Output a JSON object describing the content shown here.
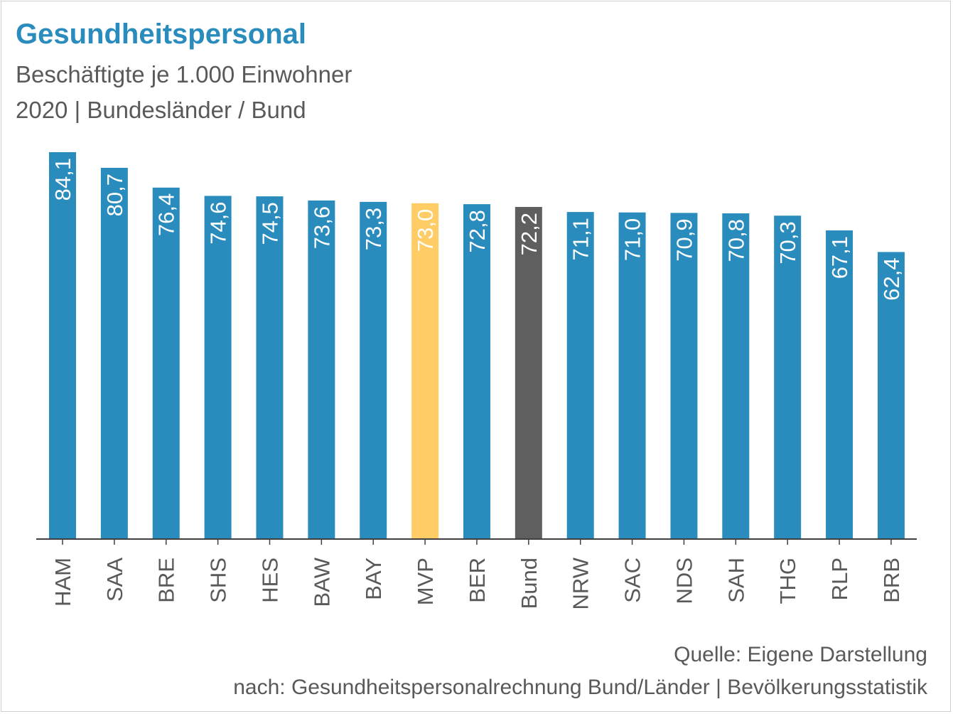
{
  "header": {
    "title": "Gesundheitspersonal",
    "subtitle_line1": "Beschäftigte je 1.000 Einwohner",
    "subtitle_line2": "2020 | Bundesländer / Bund"
  },
  "footer": {
    "source_line1": "Quelle: Eigene Darstellung",
    "source_line2": "nach: Gesundheitspersonalrechnung Bund/Länder | Bevölkerungsstatistik"
  },
  "colors": {
    "default_bar": "#2a8bbd",
    "highlight_bar": "#ffcc66",
    "federal_bar": "#5f5f5f",
    "title": "#2a8bbd",
    "text": "#595959"
  },
  "chart_data": {
    "type": "bar",
    "title": "Gesundheitspersonal",
    "subtitle": "Beschäftigte je 1.000 Einwohner · 2020 | Bundesländer / Bund",
    "xlabel": "",
    "ylabel": "",
    "ylim": [
      0,
      84.1
    ],
    "grid": false,
    "legend": "none",
    "categories": [
      "HAM",
      "SAA",
      "BRE",
      "SHS",
      "HES",
      "BAW",
      "BAY",
      "MVP",
      "BER",
      "Bund",
      "NRW",
      "SAC",
      "NDS",
      "SAH",
      "THG",
      "RLP",
      "BRB"
    ],
    "values": [
      84.1,
      80.7,
      76.4,
      74.6,
      74.5,
      73.6,
      73.3,
      73.0,
      72.8,
      72.2,
      71.1,
      71.0,
      70.9,
      70.8,
      70.3,
      67.1,
      62.4
    ],
    "data_labels": [
      "84,1",
      "80,7",
      "76,4",
      "74,6",
      "74,5",
      "73,6",
      "73,3",
      "73,0",
      "72,8",
      "72,2",
      "71,1",
      "71,0",
      "70,9",
      "70,8",
      "70,3",
      "67,1",
      "62,4"
    ],
    "highlight": {
      "MVP": "#ffcc66",
      "Bund": "#5f5f5f"
    }
  }
}
